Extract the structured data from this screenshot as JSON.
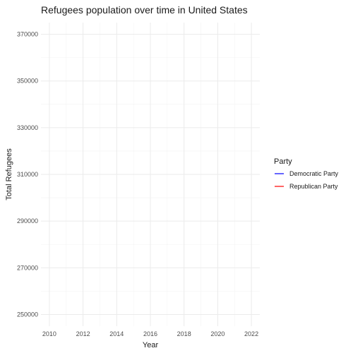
{
  "chart_data": {
    "type": "line",
    "title": "Refugees population over time in United States",
    "xlabel": "Year",
    "ylabel": "Total Refugees",
    "x_ticks": [
      2010,
      2012,
      2014,
      2016,
      2018,
      2020,
      2022
    ],
    "y_ticks": [
      250000,
      270000,
      290000,
      310000,
      330000,
      350000,
      370000
    ],
    "xlim": [
      2009.5,
      2022.5
    ],
    "ylim": [
      245000,
      375000
    ],
    "grid": true,
    "legend": {
      "title": "Party",
      "position": "right",
      "entries": [
        {
          "name": "Democratic Party",
          "color": "#0000ff"
        },
        {
          "name": "Republican Party",
          "color": "#ff0000"
        }
      ]
    },
    "series": [
      {
        "name": "Democratic Party",
        "color": "#0000ff",
        "x": [],
        "y": []
      },
      {
        "name": "Republican Party",
        "color": "#ff0000",
        "x": [],
        "y": []
      }
    ]
  }
}
